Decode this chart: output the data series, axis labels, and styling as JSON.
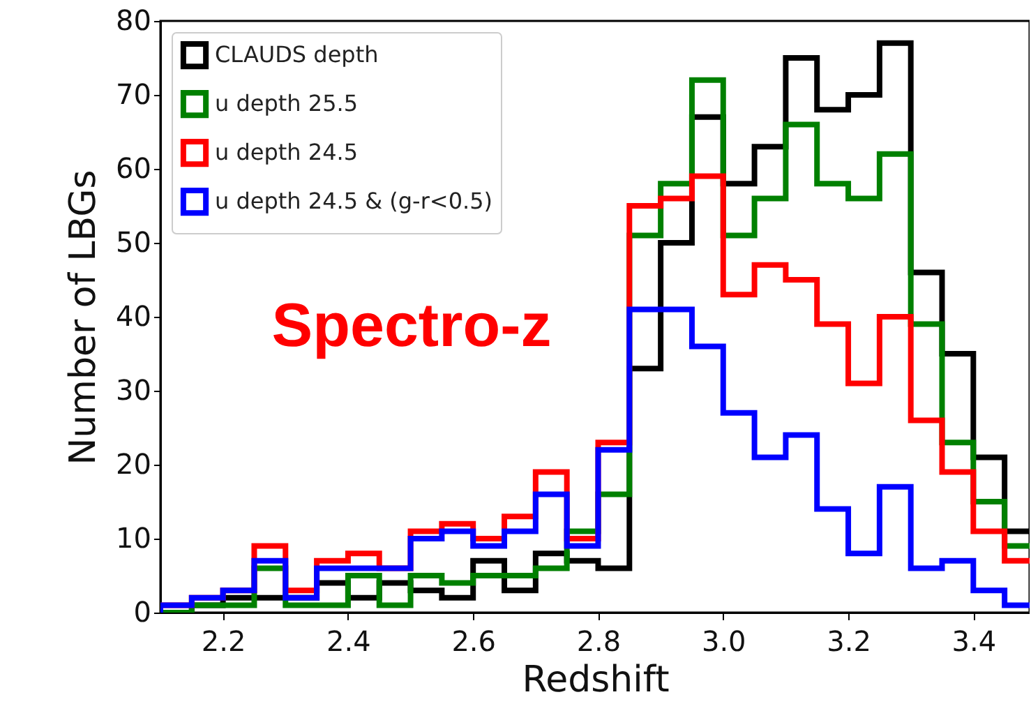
{
  "chart_data": {
    "type": "histogram",
    "xlabel": "Redshift",
    "ylabel": "Number of LBGs",
    "bins": [
      2.1,
      2.15,
      2.2,
      2.25,
      2.3,
      2.35,
      2.4,
      2.45,
      2.5,
      2.55,
      2.6,
      2.65,
      2.7,
      2.75,
      2.8,
      2.85,
      2.9,
      2.95,
      3.0,
      3.05,
      3.1,
      3.15,
      3.2,
      3.25,
      3.3,
      3.35,
      3.4,
      3.45,
      3.5
    ],
    "series": [
      {
        "name": "CLAUDS depth",
        "color": "#000000",
        "values": [
          0,
          1,
          2,
          2,
          2,
          4,
          2,
          4,
          3,
          2,
          7,
          3,
          8,
          7,
          6,
          33,
          50,
          67,
          58,
          63,
          75,
          68,
          70,
          77,
          46,
          35,
          21,
          11
        ]
      },
      {
        "name": "u depth 25.5",
        "color": "#008000",
        "values": [
          0,
          1,
          1,
          6,
          1,
          1,
          5,
          1,
          5,
          4,
          5,
          5,
          6,
          11,
          16,
          51,
          58,
          72,
          51,
          56,
          66,
          58,
          56,
          62,
          39,
          23,
          15,
          9
        ]
      },
      {
        "name": "u depth 24.5",
        "color": "#ff0000",
        "values": [
          1,
          2,
          3,
          9,
          3,
          7,
          8,
          6,
          11,
          12,
          10,
          13,
          19,
          10,
          23,
          55,
          56,
          59,
          43,
          47,
          45,
          39,
          31,
          40,
          26,
          19,
          11,
          7
        ]
      },
      {
        "name": "u depth 24.5 & (g-r<0.5)",
        "color": "#0000ff",
        "values": [
          1,
          2,
          3,
          7,
          2,
          6,
          6,
          6,
          10,
          11,
          9,
          11,
          16,
          9,
          22,
          41,
          41,
          36,
          27,
          21,
          24,
          14,
          8,
          17,
          6,
          7,
          3,
          1
        ]
      }
    ],
    "xlim": [
      2.1,
      3.49
    ],
    "ylim": [
      0,
      80
    ],
    "xticks": [
      2.2,
      2.4,
      2.6,
      2.8,
      {
        "value": 3,
        "label": "3.0"
      },
      3.2,
      3.4
    ],
    "yticks": [
      0,
      10,
      20,
      30,
      40,
      50,
      60,
      70,
      80
    ],
    "legend": "top left",
    "grid": false,
    "annotations": [
      "Spectro-z"
    ]
  }
}
